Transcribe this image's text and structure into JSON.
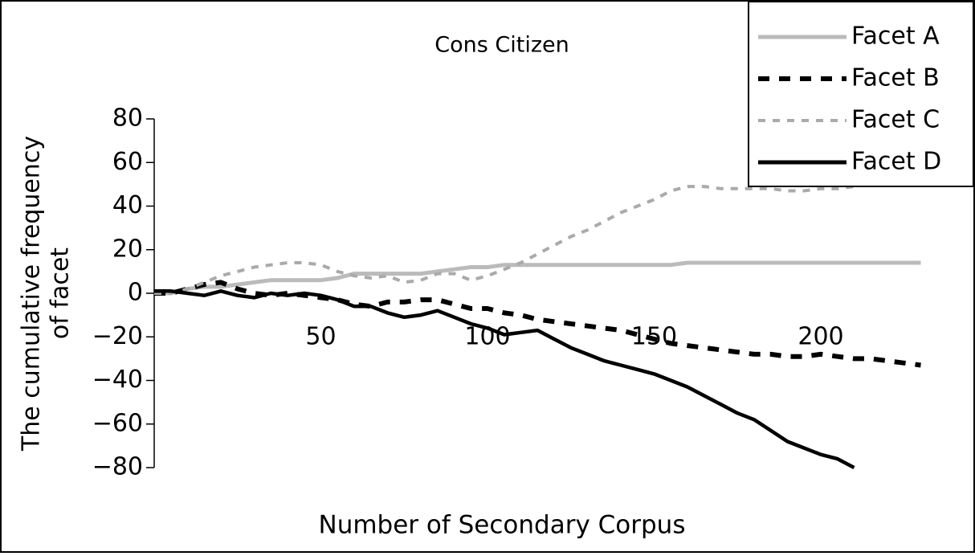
{
  "chart_data": {
    "type": "line",
    "title": "Cons Citizen",
    "x_label": "Number of Secondary Corpus",
    "y_label": [
      "The cumulative frequency",
      "of  facet"
    ],
    "x": [
      0,
      5,
      10,
      15,
      20,
      25,
      30,
      35,
      40,
      45,
      50,
      55,
      60,
      65,
      70,
      75,
      80,
      85,
      90,
      95,
      100,
      105,
      110,
      115,
      120,
      125,
      130,
      135,
      140,
      145,
      150,
      155,
      160,
      165,
      170,
      175,
      180,
      185,
      190,
      195,
      200,
      205,
      210,
      215,
      220,
      225,
      230
    ],
    "series": [
      {
        "name": "Facet A",
        "color": "#bbbbbb",
        "dash": "solid",
        "values": [
          0,
          0,
          2,
          3,
          3,
          4,
          5,
          6,
          6,
          6,
          6,
          7,
          9,
          9,
          9,
          9,
          9,
          10,
          11,
          12,
          12,
          13,
          13,
          13,
          13,
          13,
          13,
          13,
          13,
          13,
          13,
          13,
          14,
          14,
          14,
          14,
          14,
          14,
          14,
          14,
          14,
          14,
          14,
          14,
          14,
          14,
          14
        ]
      },
      {
        "name": "Facet B",
        "color": "#000000",
        "dash": "long",
        "values": [
          0,
          0,
          2,
          4,
          5,
          2,
          0,
          -1,
          0,
          -1,
          -2,
          -3,
          -5,
          -6,
          -4,
          -4,
          -3,
          -3,
          -5,
          -7,
          -7,
          -9,
          -10,
          -12,
          -13,
          -14,
          -15,
          -16,
          -17,
          -19,
          -21,
          -23,
          -24,
          -25,
          -26,
          -27,
          -28,
          -28,
          -29,
          -29,
          -28,
          -29,
          -30,
          -30,
          -31,
          -32,
          -33
        ]
      },
      {
        "name": "Facet C",
        "color": "#aaaaaa",
        "dash": "short",
        "values": [
          0,
          0,
          2,
          5,
          8,
          10,
          12,
          13,
          14,
          14,
          13,
          10,
          8,
          7,
          8,
          5,
          6,
          9,
          9,
          6,
          8,
          11,
          14,
          18,
          22,
          26,
          29,
          33,
          37,
          40,
          43,
          47,
          49,
          49,
          48,
          48,
          48,
          48,
          47,
          47,
          48,
          48,
          49,
          50,
          51,
          52,
          53
        ]
      },
      {
        "name": "Facet D",
        "color": "#000000",
        "dash": "solid",
        "values": [
          1,
          1,
          0,
          -1,
          1,
          -1,
          -2,
          0,
          -1,
          0,
          -1,
          -3,
          -6,
          -6,
          -9,
          -11,
          -10,
          -8,
          -11,
          -14,
          -16,
          -19,
          -18,
          -17,
          -21,
          -25,
          -28,
          -31,
          -33,
          -35,
          -37,
          -40,
          -43,
          -47,
          -51,
          -55,
          -58,
          -63,
          -68,
          -71,
          -74,
          -76,
          -80,
          null,
          null,
          null,
          null
        ]
      }
    ],
    "xlim": [
      0,
      244
    ],
    "xticks": [
      50,
      100,
      150,
      200
    ],
    "ylim": [
      -80,
      80
    ],
    "yticks": [
      {
        "value": -80,
        "label": "−80"
      },
      {
        "value": -60,
        "label": "−60"
      },
      {
        "value": -40,
        "label": "−40"
      },
      {
        "value": -20,
        "label": "−20"
      },
      0,
      20,
      40,
      60,
      80
    ],
    "legend": "top-right",
    "grid": false
  }
}
